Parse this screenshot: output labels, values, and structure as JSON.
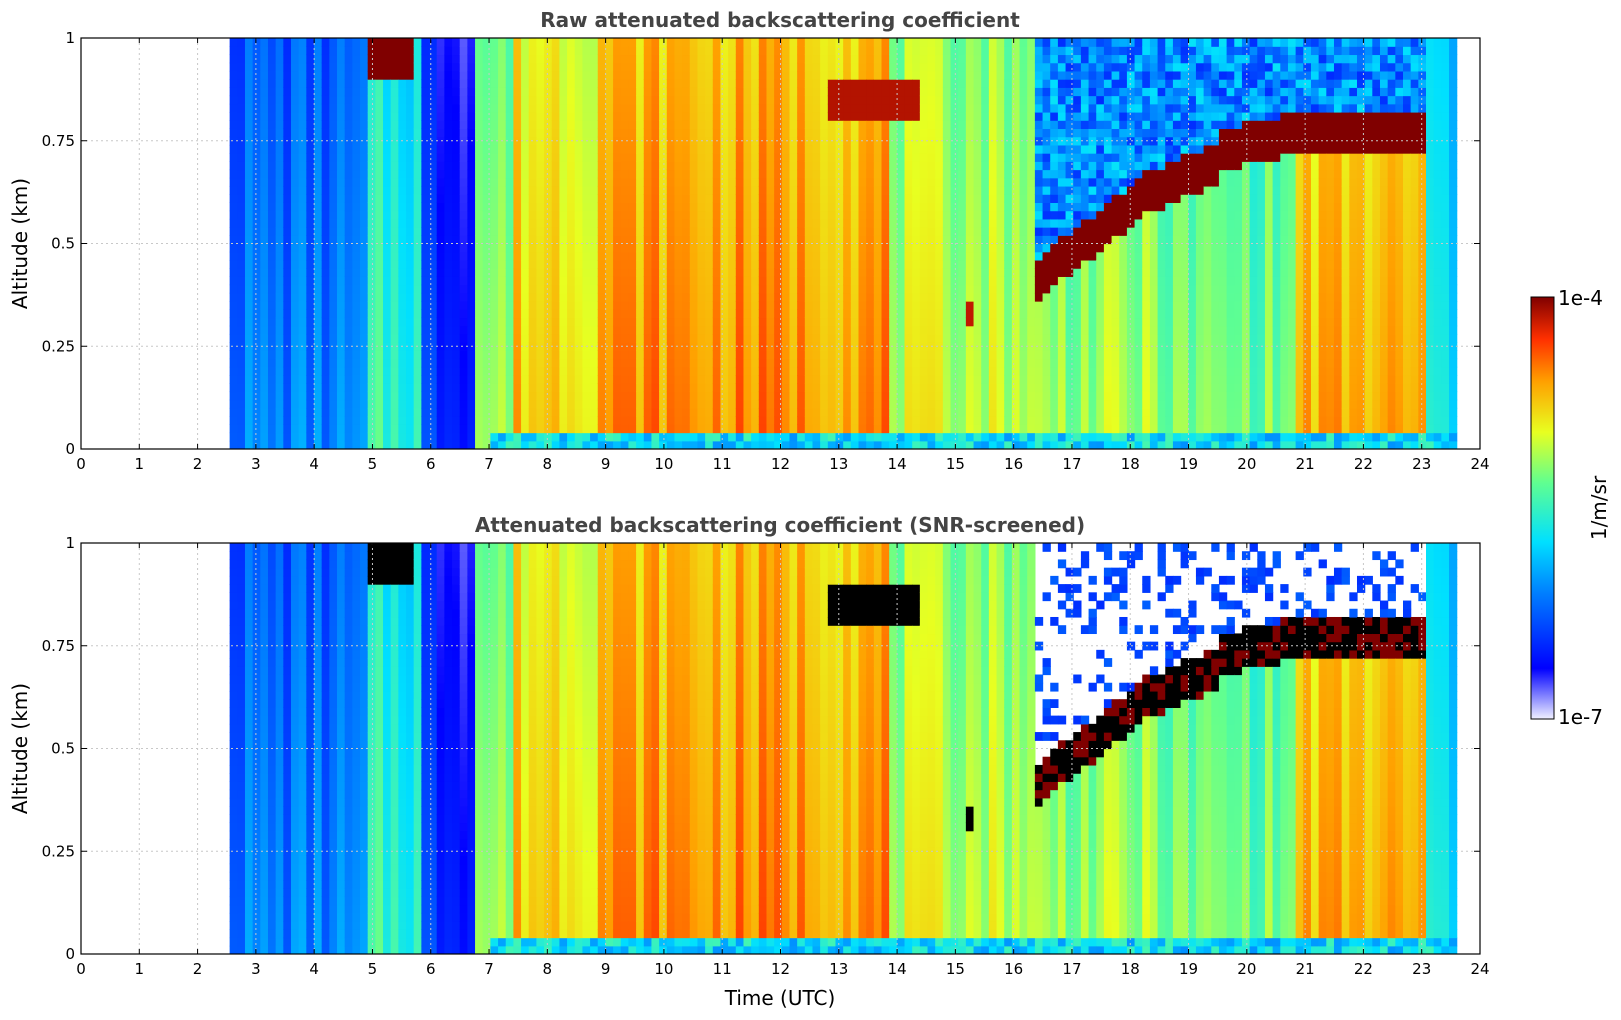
{
  "chart_data": [
    {
      "type": "heatmap",
      "title": "Raw attenuated backscattering coefficient",
      "xlabel": "",
      "ylabel": "Altitude (km)",
      "xlim": [
        0,
        24
      ],
      "ylim": [
        0,
        1
      ],
      "x_ticks": [
        "0",
        "1",
        "2",
        "3",
        "4",
        "5",
        "6",
        "7",
        "8",
        "9",
        "10",
        "11",
        "12",
        "13",
        "14",
        "15",
        "16",
        "17",
        "18",
        "19",
        "20",
        "21",
        "22",
        "23",
        "24"
      ],
      "y_ticks": [
        "0",
        "0.25",
        "0.5",
        "0.75",
        "1"
      ],
      "data_start_hour": 2.55,
      "data_end_hour": 23.6,
      "grid": true,
      "screened": false
    },
    {
      "type": "heatmap",
      "title": "Attenuated backscattering coefficient (SNR-screened)",
      "xlabel": "Time (UTC)",
      "ylabel": "Altitude (km)",
      "xlim": [
        0,
        24
      ],
      "ylim": [
        0,
        1
      ],
      "x_ticks": [
        "0",
        "1",
        "2",
        "3",
        "4",
        "5",
        "6",
        "7",
        "8",
        "9",
        "10",
        "11",
        "12",
        "13",
        "14",
        "15",
        "16",
        "17",
        "18",
        "19",
        "20",
        "21",
        "22",
        "23",
        "24"
      ],
      "y_ticks": [
        "0",
        "0.25",
        "0.5",
        "0.75",
        "1"
      ],
      "data_start_hour": 2.55,
      "data_end_hour": 23.6,
      "grid": true,
      "screened": true
    }
  ],
  "colorbar": {
    "label": "1/m/sr",
    "max_label": "1e-4",
    "min_label": "1e-7",
    "scale": "log",
    "colormap": "jet",
    "placement": "right"
  }
}
